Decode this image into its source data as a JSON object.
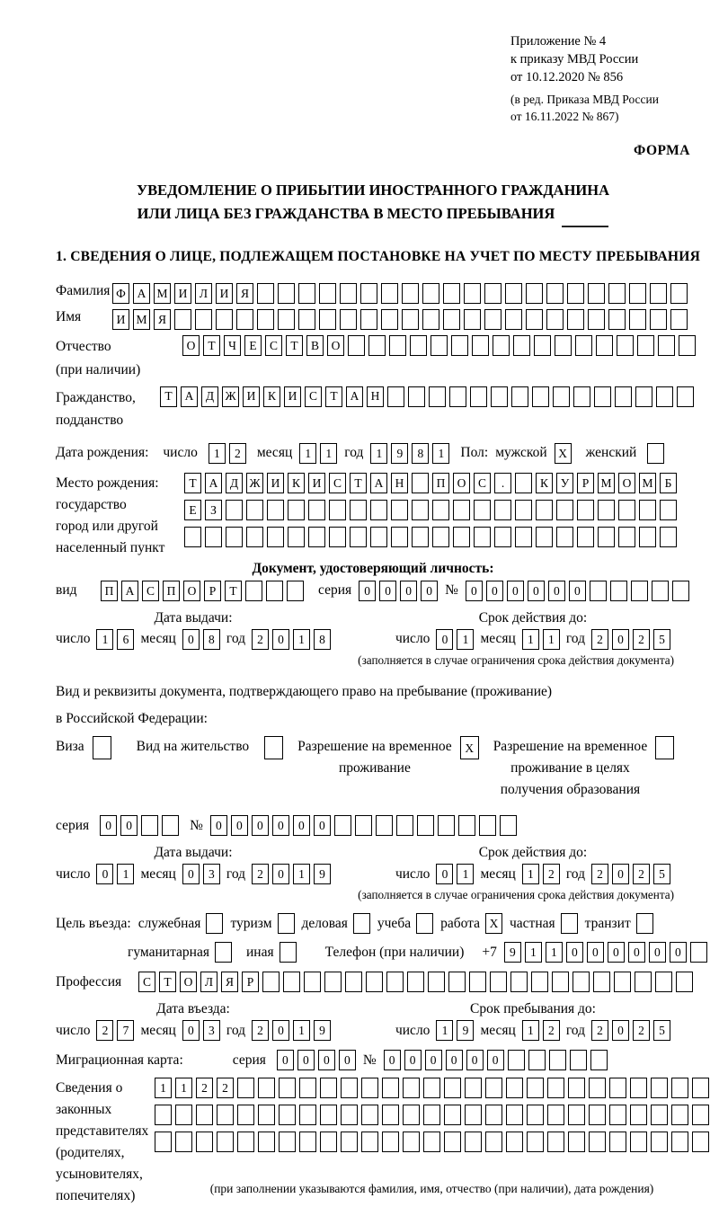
{
  "doc_header": {
    "lines": [
      "Приложение № 4",
      "к приказу МВД России",
      "от 10.12.2020 № 856"
    ],
    "sub_lines": [
      "(в ред. Приказа МВД России",
      "от 16.11.2022 № 867)"
    ],
    "forma": "ФОРМА"
  },
  "title": {
    "line1": "УВЕДОМЛЕНИЕ О ПРИБЫТИИ ИНОСТРАННОГО ГРАЖДАНИНА",
    "line2": "ИЛИ ЛИЦА БЕЗ ГРАЖДАНСТВА В МЕСТО ПРЕБЫВАНИЯ"
  },
  "section1": {
    "heading": "1. СВЕДЕНИЯ О ЛИЦЕ, ПОДЛЕЖАЩЕМ ПОСТАНОВКЕ НА УЧЕТ ПО МЕСТУ ПРЕБЫВАНИЯ"
  },
  "labels": {
    "day": "число",
    "month": "месяц",
    "year": "год",
    "series": "серия",
    "number": "№"
  },
  "surname": {
    "label": "Фамилия",
    "value": "ФАМИЛИЯ",
    "cells": 28
  },
  "given_name": {
    "label": "Имя",
    "value": "ИМЯ",
    "cells": 28
  },
  "patronymic": {
    "label1": "Отчество",
    "label2": "(при наличии)",
    "value": "ОТЧЕСТВО",
    "cells": 25
  },
  "citizenship": {
    "label1": "Гражданство,",
    "label2": "подданство",
    "value": "ТАДЖИКИСТАН",
    "cells": 26
  },
  "birth_date": {
    "label": "Дата рождения:",
    "day": {
      "value": "12",
      "cells": 2
    },
    "month": {
      "value": "11",
      "cells": 2
    },
    "year": {
      "value": "1981",
      "cells": 4
    }
  },
  "sex": {
    "label": "Пол:",
    "male_label": "мужской",
    "male_checked": true,
    "female_label": "женский",
    "female_checked": false
  },
  "birth_place": {
    "label_lines": [
      "Место рождения:",
      "государство",
      "город или другой",
      "населенный пункт"
    ],
    "row1": {
      "value": "ТАДЖИКИСТАН ПОС. КУРМОМБ",
      "cells": 24
    },
    "row2": {
      "value": "ЕЗ",
      "cells": 24
    },
    "row3": {
      "value": "",
      "cells": 24
    }
  },
  "identity_doc": {
    "heading": "Документ, удостоверяющий личность:",
    "type_label": "вид",
    "type": {
      "value": "ПАСПОРТ",
      "cells": 10
    },
    "series": {
      "value": "0000",
      "cells": 4
    },
    "number": {
      "value": "000000",
      "cells": 11
    },
    "issue": {
      "heading": "Дата выдачи:",
      "day": {
        "value": "16",
        "cells": 2
      },
      "month": {
        "value": "08",
        "cells": 2
      },
      "year": {
        "value": "2018",
        "cells": 4
      }
    },
    "valid": {
      "heading": "Срок действия до:",
      "day": {
        "value": "01",
        "cells": 2
      },
      "month": {
        "value": "11",
        "cells": 2
      },
      "year": {
        "value": "2025",
        "cells": 4
      }
    },
    "valid_note": "(заполняется в случае ограничения срока действия документа)"
  },
  "residence_doc": {
    "intro1": "Вид и реквизиты документа, подтверждающего право на пребывание (проживание)",
    "intro2": "в Российской Федерации:",
    "options": [
      {
        "label_lines": [
          "Виза"
        ],
        "checked": false
      },
      {
        "label_lines": [
          "Вид на жительство"
        ],
        "checked": false
      },
      {
        "label_lines": [
          "Разрешение на временное",
          "проживание"
        ],
        "checked": true
      },
      {
        "label_lines": [
          "Разрешение на временное",
          "проживание в целях",
          "получения образования"
        ],
        "checked": false
      }
    ],
    "series": {
      "value": "00",
      "cells": 4
    },
    "number": {
      "value": "000000",
      "cells": 15
    },
    "issue": {
      "heading": "Дата выдачи:",
      "day": {
        "value": "01",
        "cells": 2
      },
      "month": {
        "value": "03",
        "cells": 2
      },
      "year": {
        "value": "2019",
        "cells": 4
      }
    },
    "valid": {
      "heading": "Срок действия до:",
      "day": {
        "value": "01",
        "cells": 2
      },
      "month": {
        "value": "12",
        "cells": 2
      },
      "year": {
        "value": "2025",
        "cells": 4
      }
    },
    "valid_note": "(заполняется в случае ограничения срока действия документа)"
  },
  "purpose": {
    "label": "Цель въезда:",
    "options_row1": [
      {
        "label": "служебная",
        "checked": false
      },
      {
        "label": "туризм",
        "checked": false
      },
      {
        "label": "деловая",
        "checked": false
      },
      {
        "label": "учеба",
        "checked": false
      },
      {
        "label": "работа",
        "checked": true
      },
      {
        "label": "частная",
        "checked": false
      },
      {
        "label": "транзит",
        "checked": false
      }
    ],
    "options_row2": [
      {
        "label": "гуманитарная",
        "checked": false
      },
      {
        "label": "иная",
        "checked": false
      }
    ]
  },
  "phone": {
    "label": "Телефон (при наличии)",
    "prefix": "+7",
    "value": "911000000",
    "cells": 10
  },
  "profession": {
    "label": "Профессия",
    "value": "СТОЛЯР",
    "cells": 27
  },
  "entry": {
    "heading": "Дата въезда:",
    "day": {
      "value": "27",
      "cells": 2
    },
    "month": {
      "value": "03",
      "cells": 2
    },
    "year": {
      "value": "2019",
      "cells": 4
    }
  },
  "stay": {
    "heading": "Срок пребывания до:",
    "day": {
      "value": "19",
      "cells": 2
    },
    "month": {
      "value": "12",
      "cells": 2
    },
    "year": {
      "value": "2025",
      "cells": 4
    }
  },
  "migration_card": {
    "label": "Миграционная карта:",
    "series": {
      "value": "0000",
      "cells": 4
    },
    "number": {
      "value": "000000",
      "cells": 11
    }
  },
  "representatives": {
    "label_lines": [
      "Сведения о",
      "законных",
      "представителях",
      "(родителях,",
      "усыновителях,",
      "попечителях)"
    ],
    "row1": {
      "value": "1122",
      "cells": 27
    },
    "row2": {
      "value": "",
      "cells": 27
    },
    "row3": {
      "value": "",
      "cells": 27
    },
    "note": "(при заполнении указываются фамилия, имя, отчество (при наличии), дата рождения)"
  }
}
